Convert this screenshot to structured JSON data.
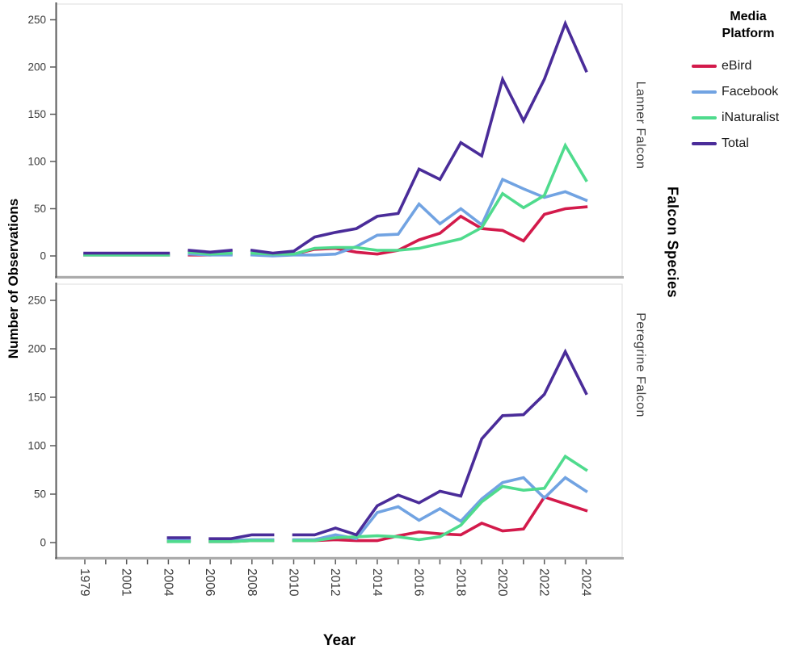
{
  "page": {
    "background": "#ffffff"
  },
  "legend": {
    "title": "Media Platform",
    "items": [
      {
        "label": "eBird",
        "color": "#d31a4b"
      },
      {
        "label": "Facebook",
        "color": "#71a3e2"
      },
      {
        "label": "iNaturalist",
        "color": "#4fdb8d"
      },
      {
        "label": "Total",
        "color": "#4a2c99"
      }
    ]
  },
  "chart_data": {
    "type": "line",
    "xlabel": "Year",
    "ylabel": "Number of Observations",
    "facet_axis_label": "Falcon Species",
    "legend_title": "Media Platform",
    "legend_position": "top-right-outside",
    "grid": false,
    "ylim": [
      0,
      250
    ],
    "yticks": [
      0,
      50,
      100,
      150,
      200,
      250
    ],
    "x_categories": [
      "1979",
      "",
      "2001",
      "",
      "2004",
      "2005",
      "2006",
      "2007",
      "2008",
      "2009",
      "2010",
      "2011",
      "2012",
      "2013",
      "2014",
      "2015",
      "2016",
      "2017",
      "2018",
      "2019",
      "2020",
      "2021",
      "2022",
      "2023",
      "2024"
    ],
    "x_tick_label_indices": [
      0,
      2,
      4,
      6,
      8,
      10,
      12,
      14,
      16,
      18,
      20,
      22,
      24
    ],
    "series": [
      {
        "name": "eBird",
        "color": "#d31a4b"
      },
      {
        "name": "Facebook",
        "color": "#71a3e2"
      },
      {
        "name": "iNaturalist",
        "color": "#4fdb8d"
      },
      {
        "name": "Total",
        "color": "#4a2c99"
      }
    ],
    "panels": [
      {
        "label": "Lanner Falcon",
        "series": [
          {
            "name": "eBird",
            "segments": [
              {
                "start": 0,
                "values": [
                  1,
                  1,
                  1,
                  1,
                  1
                ]
              },
              {
                "start": 5,
                "values": [
                  1,
                  1,
                  2
                ]
              },
              {
                "start": 8,
                "values": [
                  2,
                  1,
                  2,
                  7,
                  8,
                  4,
                  2,
                  6,
                  17,
                  24,
                  42,
                  29,
                  27,
                  16,
                  44,
                  50,
                  52
                ]
              }
            ]
          },
          {
            "name": "Facebook",
            "segments": [
              {
                "start": 0,
                "values": [
                  1,
                  1,
                  1,
                  1,
                  1
                ]
              },
              {
                "start": 5,
                "values": [
                  2,
                  1,
                  1
                ]
              },
              {
                "start": 8,
                "values": [
                  1,
                  0,
                  1,
                  1,
                  2,
                  10,
                  22,
                  23,
                  55,
                  34,
                  50,
                  33,
                  81,
                  71,
                  62,
                  68,
                  59
                ]
              }
            ]
          },
          {
            "name": "iNaturalist",
            "segments": [
              {
                "start": 0,
                "values": [
                  1,
                  1,
                  1,
                  1,
                  1
                ]
              },
              {
                "start": 5,
                "values": [
                  4,
                  2,
                  3
                ]
              },
              {
                "start": 8,
                "values": [
                  3,
                  2,
                  2,
                  8,
                  9,
                  9,
                  6,
                  6,
                  8,
                  13,
                  18,
                  30,
                  66,
                  51,
                  64,
                  117,
                  80
                ]
              }
            ]
          },
          {
            "name": "Total",
            "segments": [
              {
                "start": 0,
                "values": [
                  3,
                  3,
                  3,
                  3,
                  3
                ]
              },
              {
                "start": 5,
                "values": [
                  6,
                  4,
                  6
                ]
              },
              {
                "start": 8,
                "values": [
                  6,
                  3,
                  5,
                  20,
                  25,
                  29,
                  42,
                  45,
                  92,
                  81,
                  120,
                  106,
                  187,
                  143,
                  187,
                  246,
                  196
                ]
              }
            ]
          }
        ]
      },
      {
        "label": "Peregrine Falcon",
        "series": [
          {
            "name": "eBird",
            "segments": [
              {
                "start": 4,
                "values": [
                  1,
                  2
                ]
              },
              {
                "start": 6,
                "values": [
                  1,
                  1,
                  2,
                  2
                ]
              },
              {
                "start": 10,
                "values": [
                  2,
                  2,
                  3,
                  2,
                  2,
                  7,
                  11,
                  9,
                  8,
                  20,
                  12,
                  14,
                  47,
                  40,
                  33
                ]
              }
            ]
          },
          {
            "name": "Facebook",
            "segments": [
              {
                "start": 4,
                "values": [
                  3,
                  2
                ]
              },
              {
                "start": 6,
                "values": [
                  2,
                  2,
                  3,
                  3
                ]
              },
              {
                "start": 10,
                "values": [
                  3,
                  3,
                  8,
                  4,
                  31,
                  37,
                  23,
                  35,
                  22,
                  45,
                  62,
                  67,
                  46,
                  67,
                  53
                ]
              }
            ]
          },
          {
            "name": "iNaturalist",
            "segments": [
              {
                "start": 4,
                "values": [
                  1,
                  1
                ]
              },
              {
                "start": 6,
                "values": [
                  1,
                  1,
                  2,
                  2
                ]
              },
              {
                "start": 10,
                "values": [
                  2,
                  2,
                  5,
                  6,
                  7,
                  6,
                  3,
                  6,
                  18,
                  42,
                  58,
                  54,
                  56,
                  89,
                  75
                ]
              }
            ]
          },
          {
            "name": "Total",
            "segments": [
              {
                "start": 4,
                "values": [
                  5,
                  5
                ]
              },
              {
                "start": 6,
                "values": [
                  4,
                  4,
                  8,
                  8
                ]
              },
              {
                "start": 10,
                "values": [
                  8,
                  8,
                  15,
                  8,
                  38,
                  49,
                  41,
                  53,
                  48,
                  107,
                  131,
                  132,
                  153,
                  197,
                  154
                ]
              }
            ]
          }
        ]
      }
    ]
  }
}
